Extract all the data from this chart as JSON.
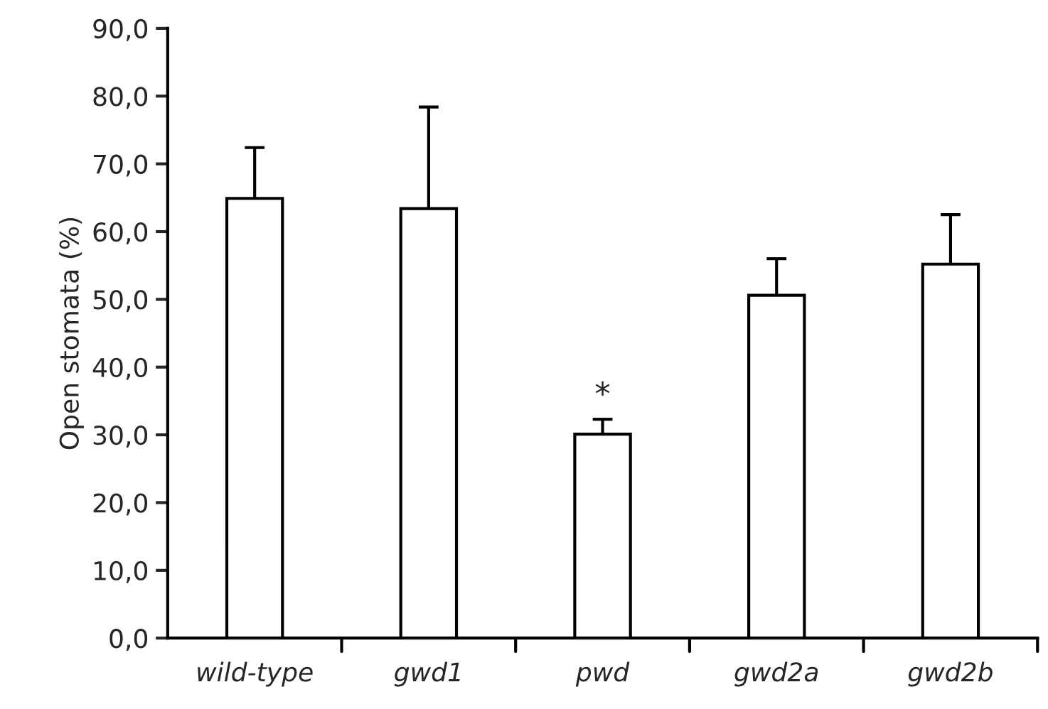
{
  "chart_data": {
    "type": "bar",
    "ylabel": "Open stomata (%)",
    "categories": [
      "wild-type",
      "gwd1",
      "pwd",
      "gwd2a",
      "gwd2b"
    ],
    "values": [
      64.9,
      63.4,
      30.1,
      50.6,
      55.2
    ],
    "errors": [
      7.5,
      15.0,
      2.2,
      5.4,
      7.3
    ],
    "color": "#ffffff",
    "ylim": [
      0,
      90
    ],
    "yticks": [
      {
        "value": 0,
        "label": "0,0"
      },
      {
        "value": 10,
        "label": "10,0"
      },
      {
        "value": 20,
        "label": "20,0"
      },
      {
        "value": 30,
        "label": "30,0"
      },
      {
        "value": 40,
        "label": "40,0"
      },
      {
        "value": 50,
        "label": "50,0"
      },
      {
        "value": 60,
        "label": "60,0"
      },
      {
        "value": 70,
        "label": "70,0"
      },
      {
        "value": 80,
        "label": "80,0"
      },
      {
        "value": 90,
        "label": "90,0"
      }
    ],
    "annotations": [
      {
        "text": "*",
        "x": "pwd",
        "y": 30.1
      }
    ],
    "grid": false,
    "legend": false
  }
}
